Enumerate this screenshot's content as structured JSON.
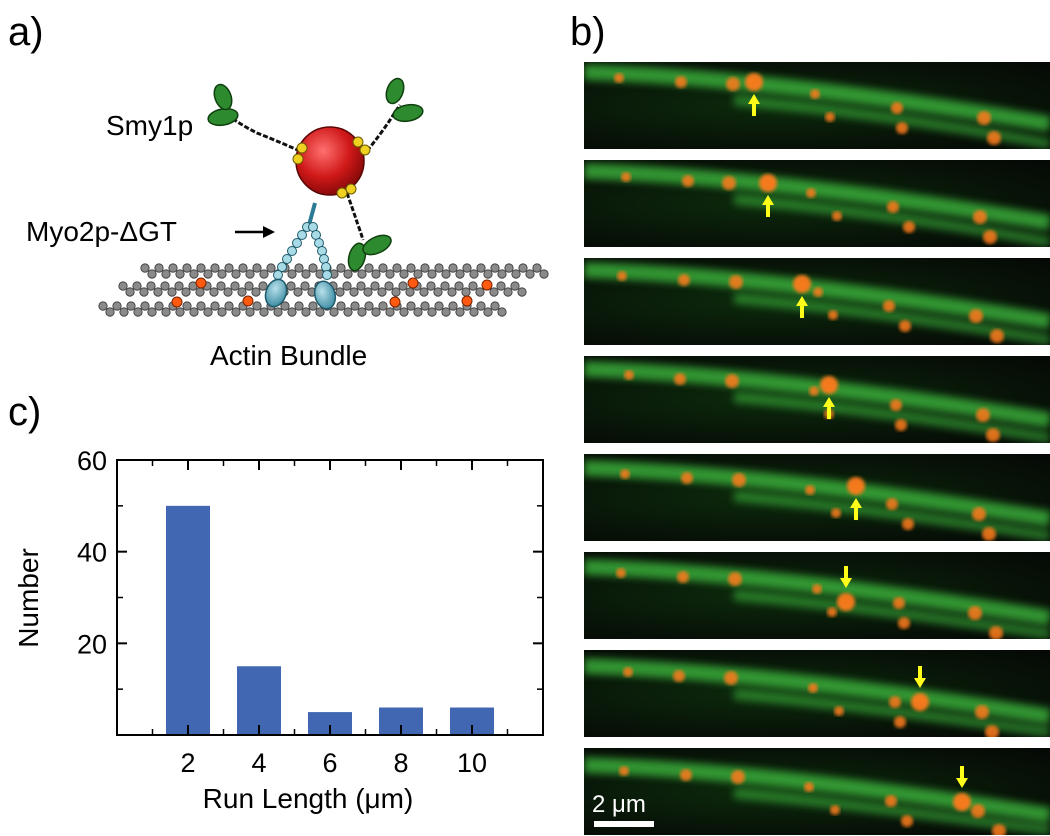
{
  "panels": {
    "a": "a)",
    "b": "b)",
    "c": "c)"
  },
  "schematic": {
    "label_smy1p": "Smy1p",
    "label_myo2p": "Myo2p-ΔGT",
    "label_actin": "Actin Bundle"
  },
  "micrographs": {
    "frame_count": 8,
    "arrow_directions": [
      "up",
      "up",
      "up",
      "up",
      "up",
      "down",
      "down",
      "down"
    ],
    "scale_bar_label": "2 μm",
    "colors": {
      "fiber": "#3fbf3f",
      "particle": "#ff7a1a",
      "arrow": "#ffff1a",
      "background": "#081408"
    }
  },
  "chart_data": {
    "type": "bar",
    "categories": [
      "2",
      "4",
      "6",
      "8",
      "10"
    ],
    "x": [
      2,
      4,
      6,
      8,
      10
    ],
    "values": [
      50,
      15,
      5,
      6,
      6
    ],
    "xlabel": "Run Length (μm)",
    "ylabel": "Number",
    "xlim": [
      0,
      12
    ],
    "ylim": [
      0,
      60
    ],
    "yticks": [
      20,
      40,
      60
    ],
    "bar_color": "#4267b2"
  }
}
